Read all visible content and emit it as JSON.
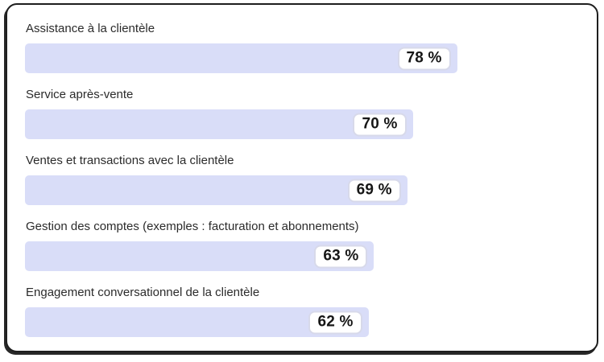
{
  "card": {
    "background": "#ffffff",
    "border_color": "#1e1e1e"
  },
  "chart_data": {
    "type": "bar",
    "orientation": "horizontal",
    "categories": [
      "Assistance à la clientèle",
      "Service après-vente",
      "Ventes et transactions avec la clientèle",
      "Gestion des comptes (exemples : facturation et abonnements)",
      "Engagement conversationnel de la clientèle"
    ],
    "values": [
      78,
      70,
      69,
      63,
      62
    ],
    "value_labels": [
      "78 %",
      "70 %",
      "69 %",
      "63 %",
      "62 %"
    ],
    "unit": "%",
    "xlim": [
      0,
      100
    ],
    "grid": false,
    "legend": "none",
    "bar_color": "#d9ddf8",
    "value_chip_bg": "#ffffff",
    "value_chip_border": "#d7d9ea",
    "label_color": "#2b2b2b",
    "value_text_color": "#161616"
  }
}
